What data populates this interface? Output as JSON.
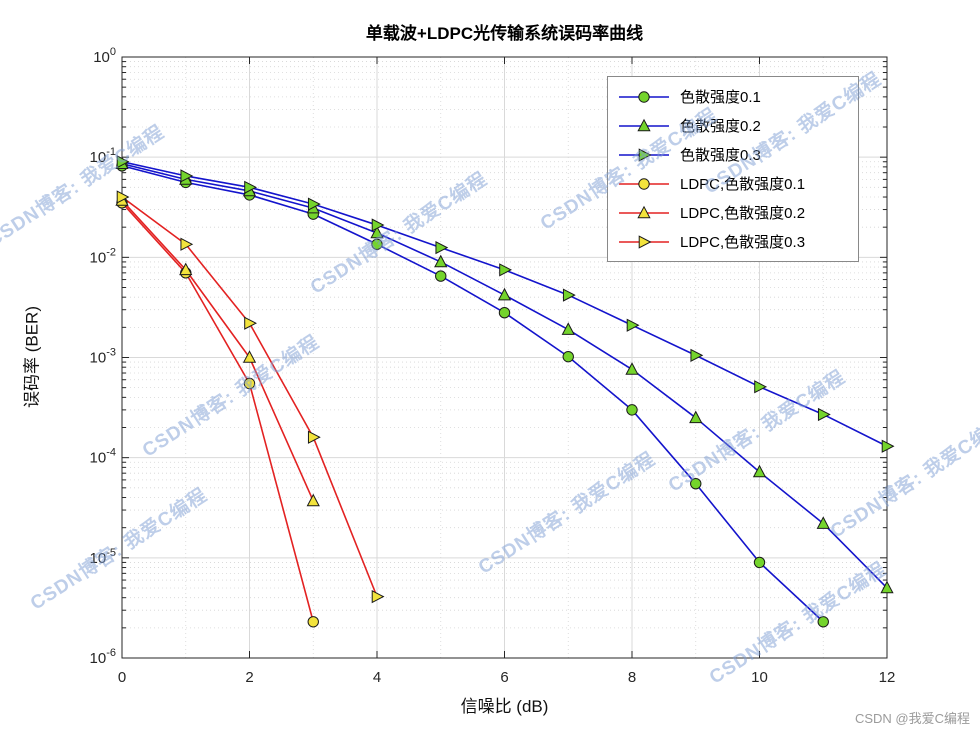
{
  "watermark": {
    "text": "CSDN博客: 我爱C编程"
  },
  "footer": {
    "credit": "CSDN @我爱C编程"
  },
  "chart_data": {
    "type": "line",
    "title": "单载波+LDPC光传输系统误码率曲线",
    "xlabel": "信噪比 (dB)",
    "ylabel": "误码率 (BER)",
    "xlim": [
      0,
      12
    ],
    "ylim_log10": [
      -6,
      0
    ],
    "yscale": "log10",
    "x_ticks": [
      0,
      2,
      4,
      6,
      8,
      10,
      12
    ],
    "y_tick_exponents": [
      0,
      -1,
      -2,
      -3,
      -4,
      -5,
      -6
    ],
    "grid": true,
    "minor_grid": true,
    "legend_position": "top-right",
    "colors": {
      "uncoded_line": "#1414cc",
      "ldpc_line": "#e32222",
      "marker_green": "#74d42c",
      "marker_yellow": "#f2e33c",
      "marker_edge": "#1a1a1a"
    },
    "series": [
      {
        "name": "色散强度0.1",
        "line": "uncoded_line",
        "marker": "circle",
        "marker_fill": "marker_green",
        "x": [
          0,
          1,
          2,
          3,
          4,
          5,
          6,
          7,
          8,
          9,
          10,
          11
        ],
        "y": [
          0.082,
          0.056,
          0.042,
          0.027,
          0.0135,
          0.0065,
          0.0028,
          0.00102,
          0.0003,
          5.5e-05,
          9e-06,
          2.3e-06
        ]
      },
      {
        "name": "色散强度0.2",
        "line": "uncoded_line",
        "marker": "triangle-up",
        "marker_fill": "marker_green",
        "x": [
          0,
          1,
          2,
          3,
          4,
          5,
          6,
          7,
          8,
          9,
          10,
          11,
          12
        ],
        "y": [
          0.086,
          0.06,
          0.046,
          0.031,
          0.0175,
          0.009,
          0.0042,
          0.0019,
          0.00076,
          0.00025,
          7.2e-05,
          2.2e-05,
          5e-06
        ]
      },
      {
        "name": "色散强度0.3",
        "line": "uncoded_line",
        "marker": "triangle-right",
        "marker_fill": "marker_green",
        "x": [
          0,
          1,
          2,
          3,
          4,
          5,
          6,
          7,
          8,
          9,
          10,
          11,
          12
        ],
        "y": [
          0.09,
          0.065,
          0.05,
          0.034,
          0.021,
          0.0125,
          0.0075,
          0.0042,
          0.0021,
          0.00105,
          0.00051,
          0.00027,
          0.00013
        ]
      },
      {
        "name": "LDPC,色散强度0.1",
        "line": "ldpc_line",
        "marker": "circle",
        "marker_fill": "marker_yellow",
        "x": [
          0,
          1,
          2,
          3
        ],
        "y": [
          0.035,
          0.007,
          0.00055,
          2.3e-06
        ]
      },
      {
        "name": "LDPC,色散强度0.2",
        "line": "ldpc_line",
        "marker": "triangle-up",
        "marker_fill": "marker_yellow",
        "x": [
          0,
          1,
          2,
          3
        ],
        "y": [
          0.037,
          0.0075,
          0.001,
          3.7e-05
        ]
      },
      {
        "name": "LDPC,色散强度0.3",
        "line": "ldpc_line",
        "marker": "triangle-right",
        "marker_fill": "marker_yellow",
        "x": [
          0,
          1,
          2,
          3,
          4
        ],
        "y": [
          0.04,
          0.0135,
          0.0022,
          0.00016,
          4.1e-06
        ]
      }
    ]
  }
}
